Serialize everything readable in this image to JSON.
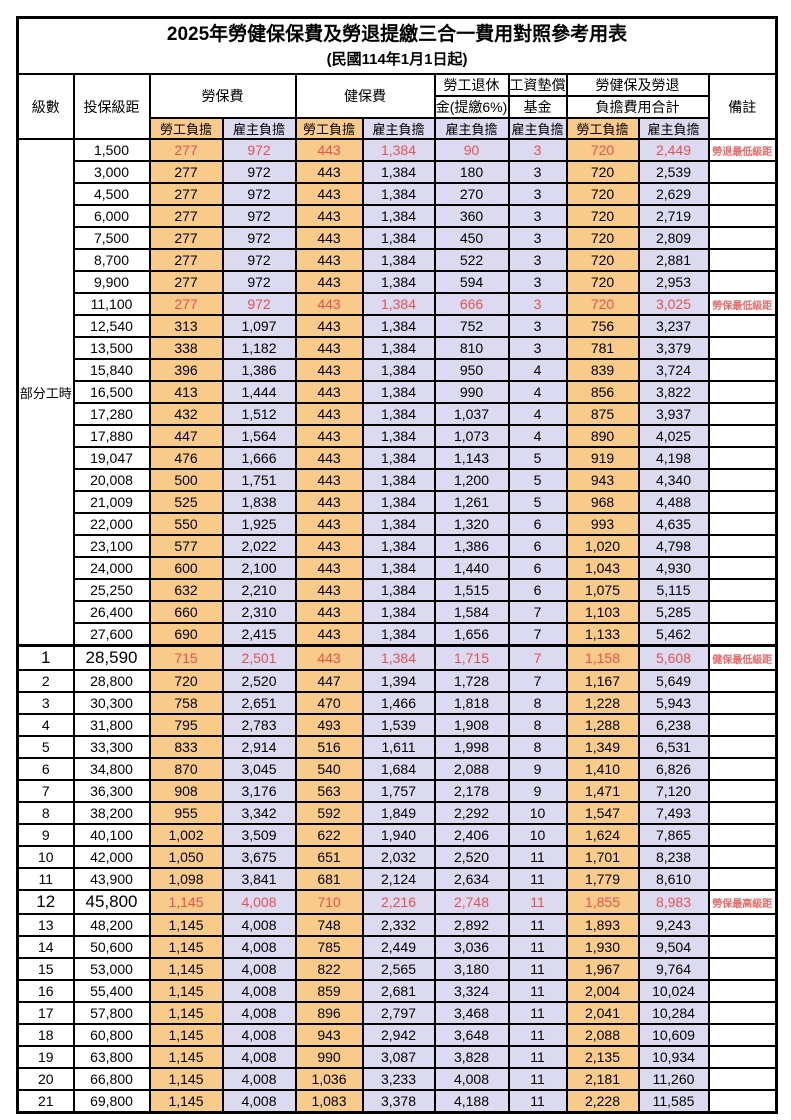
{
  "title": "2025年勞健保保費及勞退提繳三合一費用對照參考用表",
  "subtitle": "(民國114年1月1日起)",
  "header": {
    "level": "級數",
    "bracket": "投保級距",
    "labor_insurance": "勞保費",
    "health_insurance": "健保費",
    "pension_line1": "勞工退休",
    "pension_line2": "金(提繳6%)",
    "wage_fund_line1": "工資墊償",
    "wage_fund_line2": "基金",
    "total_line1": "勞健保及勞退",
    "total_line2": "負擔費用合計",
    "remark": "備註",
    "employee": "勞工負擔",
    "employer": "雇主負擔"
  },
  "part_time_label": "部分工時",
  "colors": {
    "employee_bg": "#F9CB8B",
    "employer_bg": "#DBDAF0",
    "highlight_red": "#E75150",
    "remark_red": "#ED6A6A",
    "grid": "#000000"
  },
  "rows": [
    {
      "level": "",
      "bracket": "1,500",
      "li_emp": "277",
      "li_er": "972",
      "hi_emp": "443",
      "hi_er": "1,384",
      "pension": "90",
      "fund": "3",
      "sum_emp": "720",
      "sum_er": "2,449",
      "remark": "勞退最低級距",
      "red": true,
      "big": false,
      "sep": false
    },
    {
      "level": "",
      "bracket": "3,000",
      "li_emp": "277",
      "li_er": "972",
      "hi_emp": "443",
      "hi_er": "1,384",
      "pension": "180",
      "fund": "3",
      "sum_emp": "720",
      "sum_er": "2,539",
      "remark": "",
      "red": false,
      "big": false,
      "sep": false
    },
    {
      "level": "",
      "bracket": "4,500",
      "li_emp": "277",
      "li_er": "972",
      "hi_emp": "443",
      "hi_er": "1,384",
      "pension": "270",
      "fund": "3",
      "sum_emp": "720",
      "sum_er": "2,629",
      "remark": "",
      "red": false,
      "big": false,
      "sep": false
    },
    {
      "level": "",
      "bracket": "6,000",
      "li_emp": "277",
      "li_er": "972",
      "hi_emp": "443",
      "hi_er": "1,384",
      "pension": "360",
      "fund": "3",
      "sum_emp": "720",
      "sum_er": "2,719",
      "remark": "",
      "red": false,
      "big": false,
      "sep": false
    },
    {
      "level": "",
      "bracket": "7,500",
      "li_emp": "277",
      "li_er": "972",
      "hi_emp": "443",
      "hi_er": "1,384",
      "pension": "450",
      "fund": "3",
      "sum_emp": "720",
      "sum_er": "2,809",
      "remark": "",
      "red": false,
      "big": false,
      "sep": false
    },
    {
      "level": "",
      "bracket": "8,700",
      "li_emp": "277",
      "li_er": "972",
      "hi_emp": "443",
      "hi_er": "1,384",
      "pension": "522",
      "fund": "3",
      "sum_emp": "720",
      "sum_er": "2,881",
      "remark": "",
      "red": false,
      "big": false,
      "sep": false
    },
    {
      "level": "",
      "bracket": "9,900",
      "li_emp": "277",
      "li_er": "972",
      "hi_emp": "443",
      "hi_er": "1,384",
      "pension": "594",
      "fund": "3",
      "sum_emp": "720",
      "sum_er": "2,953",
      "remark": "",
      "red": false,
      "big": false,
      "sep": false
    },
    {
      "level": "",
      "bracket": "11,100",
      "li_emp": "277",
      "li_er": "972",
      "hi_emp": "443",
      "hi_er": "1,384",
      "pension": "666",
      "fund": "3",
      "sum_emp": "720",
      "sum_er": "3,025",
      "remark": "勞保最低級距",
      "red": true,
      "big": false,
      "sep": false
    },
    {
      "level": "",
      "bracket": "12,540",
      "li_emp": "313",
      "li_er": "1,097",
      "hi_emp": "443",
      "hi_er": "1,384",
      "pension": "752",
      "fund": "3",
      "sum_emp": "756",
      "sum_er": "3,237",
      "remark": "",
      "red": false,
      "big": false,
      "sep": false
    },
    {
      "level": "",
      "bracket": "13,500",
      "li_emp": "338",
      "li_er": "1,182",
      "hi_emp": "443",
      "hi_er": "1,384",
      "pension": "810",
      "fund": "3",
      "sum_emp": "781",
      "sum_er": "3,379",
      "remark": "",
      "red": false,
      "big": false,
      "sep": false
    },
    {
      "level": "",
      "bracket": "15,840",
      "li_emp": "396",
      "li_er": "1,386",
      "hi_emp": "443",
      "hi_er": "1,384",
      "pension": "950",
      "fund": "4",
      "sum_emp": "839",
      "sum_er": "3,724",
      "remark": "",
      "red": false,
      "big": false,
      "sep": false
    },
    {
      "level": "",
      "bracket": "16,500",
      "li_emp": "413",
      "li_er": "1,444",
      "hi_emp": "443",
      "hi_er": "1,384",
      "pension": "990",
      "fund": "4",
      "sum_emp": "856",
      "sum_er": "3,822",
      "remark": "",
      "red": false,
      "big": false,
      "sep": false
    },
    {
      "level": "",
      "bracket": "17,280",
      "li_emp": "432",
      "li_er": "1,512",
      "hi_emp": "443",
      "hi_er": "1,384",
      "pension": "1,037",
      "fund": "4",
      "sum_emp": "875",
      "sum_er": "3,937",
      "remark": "",
      "red": false,
      "big": false,
      "sep": false
    },
    {
      "level": "",
      "bracket": "17,880",
      "li_emp": "447",
      "li_er": "1,564",
      "hi_emp": "443",
      "hi_er": "1,384",
      "pension": "1,073",
      "fund": "4",
      "sum_emp": "890",
      "sum_er": "4,025",
      "remark": "",
      "red": false,
      "big": false,
      "sep": false
    },
    {
      "level": "",
      "bracket": "19,047",
      "li_emp": "476",
      "li_er": "1,666",
      "hi_emp": "443",
      "hi_er": "1,384",
      "pension": "1,143",
      "fund": "5",
      "sum_emp": "919",
      "sum_er": "4,198",
      "remark": "",
      "red": false,
      "big": false,
      "sep": false
    },
    {
      "level": "",
      "bracket": "20,008",
      "li_emp": "500",
      "li_er": "1,751",
      "hi_emp": "443",
      "hi_er": "1,384",
      "pension": "1,200",
      "fund": "5",
      "sum_emp": "943",
      "sum_er": "4,340",
      "remark": "",
      "red": false,
      "big": false,
      "sep": false
    },
    {
      "level": "",
      "bracket": "21,009",
      "li_emp": "525",
      "li_er": "1,838",
      "hi_emp": "443",
      "hi_er": "1,384",
      "pension": "1,261",
      "fund": "5",
      "sum_emp": "968",
      "sum_er": "4,488",
      "remark": "",
      "red": false,
      "big": false,
      "sep": false
    },
    {
      "level": "",
      "bracket": "22,000",
      "li_emp": "550",
      "li_er": "1,925",
      "hi_emp": "443",
      "hi_er": "1,384",
      "pension": "1,320",
      "fund": "6",
      "sum_emp": "993",
      "sum_er": "4,635",
      "remark": "",
      "red": false,
      "big": false,
      "sep": false
    },
    {
      "level": "",
      "bracket": "23,100",
      "li_emp": "577",
      "li_er": "2,022",
      "hi_emp": "443",
      "hi_er": "1,384",
      "pension": "1,386",
      "fund": "6",
      "sum_emp": "1,020",
      "sum_er": "4,798",
      "remark": "",
      "red": false,
      "big": false,
      "sep": false
    },
    {
      "level": "",
      "bracket": "24,000",
      "li_emp": "600",
      "li_er": "2,100",
      "hi_emp": "443",
      "hi_er": "1,384",
      "pension": "1,440",
      "fund": "6",
      "sum_emp": "1,043",
      "sum_er": "4,930",
      "remark": "",
      "red": false,
      "big": false,
      "sep": false
    },
    {
      "level": "",
      "bracket": "25,250",
      "li_emp": "632",
      "li_er": "2,210",
      "hi_emp": "443",
      "hi_er": "1,384",
      "pension": "1,515",
      "fund": "6",
      "sum_emp": "1,075",
      "sum_er": "5,115",
      "remark": "",
      "red": false,
      "big": false,
      "sep": false
    },
    {
      "level": "",
      "bracket": "26,400",
      "li_emp": "660",
      "li_er": "2,310",
      "hi_emp": "443",
      "hi_er": "1,384",
      "pension": "1,584",
      "fund": "7",
      "sum_emp": "1,103",
      "sum_er": "5,285",
      "remark": "",
      "red": false,
      "big": false,
      "sep": false
    },
    {
      "level": "",
      "bracket": "27,600",
      "li_emp": "690",
      "li_er": "2,415",
      "hi_emp": "443",
      "hi_er": "1,384",
      "pension": "1,656",
      "fund": "7",
      "sum_emp": "1,133",
      "sum_er": "5,462",
      "remark": "",
      "red": false,
      "big": false,
      "sep": false
    },
    {
      "level": "1",
      "bracket": "28,590",
      "li_emp": "715",
      "li_er": "2,501",
      "hi_emp": "443",
      "hi_er": "1,384",
      "pension": "1,715",
      "fund": "7",
      "sum_emp": "1,158",
      "sum_er": "5,608",
      "remark": "健保最低級距",
      "red": true,
      "big": true,
      "sep": true
    },
    {
      "level": "2",
      "bracket": "28,800",
      "li_emp": "720",
      "li_er": "2,520",
      "hi_emp": "447",
      "hi_er": "1,394",
      "pension": "1,728",
      "fund": "7",
      "sum_emp": "1,167",
      "sum_er": "5,649",
      "remark": "",
      "red": false,
      "big": false,
      "sep": false
    },
    {
      "level": "3",
      "bracket": "30,300",
      "li_emp": "758",
      "li_er": "2,651",
      "hi_emp": "470",
      "hi_er": "1,466",
      "pension": "1,818",
      "fund": "8",
      "sum_emp": "1,228",
      "sum_er": "5,943",
      "remark": "",
      "red": false,
      "big": false,
      "sep": false
    },
    {
      "level": "4",
      "bracket": "31,800",
      "li_emp": "795",
      "li_er": "2,783",
      "hi_emp": "493",
      "hi_er": "1,539",
      "pension": "1,908",
      "fund": "8",
      "sum_emp": "1,288",
      "sum_er": "6,238",
      "remark": "",
      "red": false,
      "big": false,
      "sep": false
    },
    {
      "level": "5",
      "bracket": "33,300",
      "li_emp": "833",
      "li_er": "2,914",
      "hi_emp": "516",
      "hi_er": "1,611",
      "pension": "1,998",
      "fund": "8",
      "sum_emp": "1,349",
      "sum_er": "6,531",
      "remark": "",
      "red": false,
      "big": false,
      "sep": false
    },
    {
      "level": "6",
      "bracket": "34,800",
      "li_emp": "870",
      "li_er": "3,045",
      "hi_emp": "540",
      "hi_er": "1,684",
      "pension": "2,088",
      "fund": "9",
      "sum_emp": "1,410",
      "sum_er": "6,826",
      "remark": "",
      "red": false,
      "big": false,
      "sep": false
    },
    {
      "level": "7",
      "bracket": "36,300",
      "li_emp": "908",
      "li_er": "3,176",
      "hi_emp": "563",
      "hi_er": "1,757",
      "pension": "2,178",
      "fund": "9",
      "sum_emp": "1,471",
      "sum_er": "7,120",
      "remark": "",
      "red": false,
      "big": false,
      "sep": false
    },
    {
      "level": "8",
      "bracket": "38,200",
      "li_emp": "955",
      "li_er": "3,342",
      "hi_emp": "592",
      "hi_er": "1,849",
      "pension": "2,292",
      "fund": "10",
      "sum_emp": "1,547",
      "sum_er": "7,493",
      "remark": "",
      "red": false,
      "big": false,
      "sep": false
    },
    {
      "level": "9",
      "bracket": "40,100",
      "li_emp": "1,002",
      "li_er": "3,509",
      "hi_emp": "622",
      "hi_er": "1,940",
      "pension": "2,406",
      "fund": "10",
      "sum_emp": "1,624",
      "sum_er": "7,865",
      "remark": "",
      "red": false,
      "big": false,
      "sep": false
    },
    {
      "level": "10",
      "bracket": "42,000",
      "li_emp": "1,050",
      "li_er": "3,675",
      "hi_emp": "651",
      "hi_er": "2,032",
      "pension": "2,520",
      "fund": "11",
      "sum_emp": "1,701",
      "sum_er": "8,238",
      "remark": "",
      "red": false,
      "big": false,
      "sep": false
    },
    {
      "level": "11",
      "bracket": "43,900",
      "li_emp": "1,098",
      "li_er": "3,841",
      "hi_emp": "681",
      "hi_er": "2,124",
      "pension": "2,634",
      "fund": "11",
      "sum_emp": "1,779",
      "sum_er": "8,610",
      "remark": "",
      "red": false,
      "big": false,
      "sep": false
    },
    {
      "level": "12",
      "bracket": "45,800",
      "li_emp": "1,145",
      "li_er": "4,008",
      "hi_emp": "710",
      "hi_er": "2,216",
      "pension": "2,748",
      "fund": "11",
      "sum_emp": "1,855",
      "sum_er": "8,983",
      "remark": "勞保最高級距",
      "red": true,
      "big": true,
      "sep": false
    },
    {
      "level": "13",
      "bracket": "48,200",
      "li_emp": "1,145",
      "li_er": "4,008",
      "hi_emp": "748",
      "hi_er": "2,332",
      "pension": "2,892",
      "fund": "11",
      "sum_emp": "1,893",
      "sum_er": "9,243",
      "remark": "",
      "red": false,
      "big": false,
      "sep": false
    },
    {
      "level": "14",
      "bracket": "50,600",
      "li_emp": "1,145",
      "li_er": "4,008",
      "hi_emp": "785",
      "hi_er": "2,449",
      "pension": "3,036",
      "fund": "11",
      "sum_emp": "1,930",
      "sum_er": "9,504",
      "remark": "",
      "red": false,
      "big": false,
      "sep": false
    },
    {
      "level": "15",
      "bracket": "53,000",
      "li_emp": "1,145",
      "li_er": "4,008",
      "hi_emp": "822",
      "hi_er": "2,565",
      "pension": "3,180",
      "fund": "11",
      "sum_emp": "1,967",
      "sum_er": "9,764",
      "remark": "",
      "red": false,
      "big": false,
      "sep": false
    },
    {
      "level": "16",
      "bracket": "55,400",
      "li_emp": "1,145",
      "li_er": "4,008",
      "hi_emp": "859",
      "hi_er": "2,681",
      "pension": "3,324",
      "fund": "11",
      "sum_emp": "2,004",
      "sum_er": "10,024",
      "remark": "",
      "red": false,
      "big": false,
      "sep": false
    },
    {
      "level": "17",
      "bracket": "57,800",
      "li_emp": "1,145",
      "li_er": "4,008",
      "hi_emp": "896",
      "hi_er": "2,797",
      "pension": "3,468",
      "fund": "11",
      "sum_emp": "2,041",
      "sum_er": "10,284",
      "remark": "",
      "red": false,
      "big": false,
      "sep": false
    },
    {
      "level": "18",
      "bracket": "60,800",
      "li_emp": "1,145",
      "li_er": "4,008",
      "hi_emp": "943",
      "hi_er": "2,942",
      "pension": "3,648",
      "fund": "11",
      "sum_emp": "2,088",
      "sum_er": "10,609",
      "remark": "",
      "red": false,
      "big": false,
      "sep": false
    },
    {
      "level": "19",
      "bracket": "63,800",
      "li_emp": "1,145",
      "li_er": "4,008",
      "hi_emp": "990",
      "hi_er": "3,087",
      "pension": "3,828",
      "fund": "11",
      "sum_emp": "2,135",
      "sum_er": "10,934",
      "remark": "",
      "red": false,
      "big": false,
      "sep": false
    },
    {
      "level": "20",
      "bracket": "66,800",
      "li_emp": "1,145",
      "li_er": "4,008",
      "hi_emp": "1,036",
      "hi_er": "3,233",
      "pension": "4,008",
      "fund": "11",
      "sum_emp": "2,181",
      "sum_er": "11,260",
      "remark": "",
      "red": false,
      "big": false,
      "sep": false
    },
    {
      "level": "21",
      "bracket": "69,800",
      "li_emp": "1,145",
      "li_er": "4,008",
      "hi_emp": "1,083",
      "hi_er": "3,378",
      "pension": "4,188",
      "fund": "11",
      "sum_emp": "2,228",
      "sum_er": "11,585",
      "remark": "",
      "red": false,
      "big": false,
      "sep": false
    }
  ]
}
